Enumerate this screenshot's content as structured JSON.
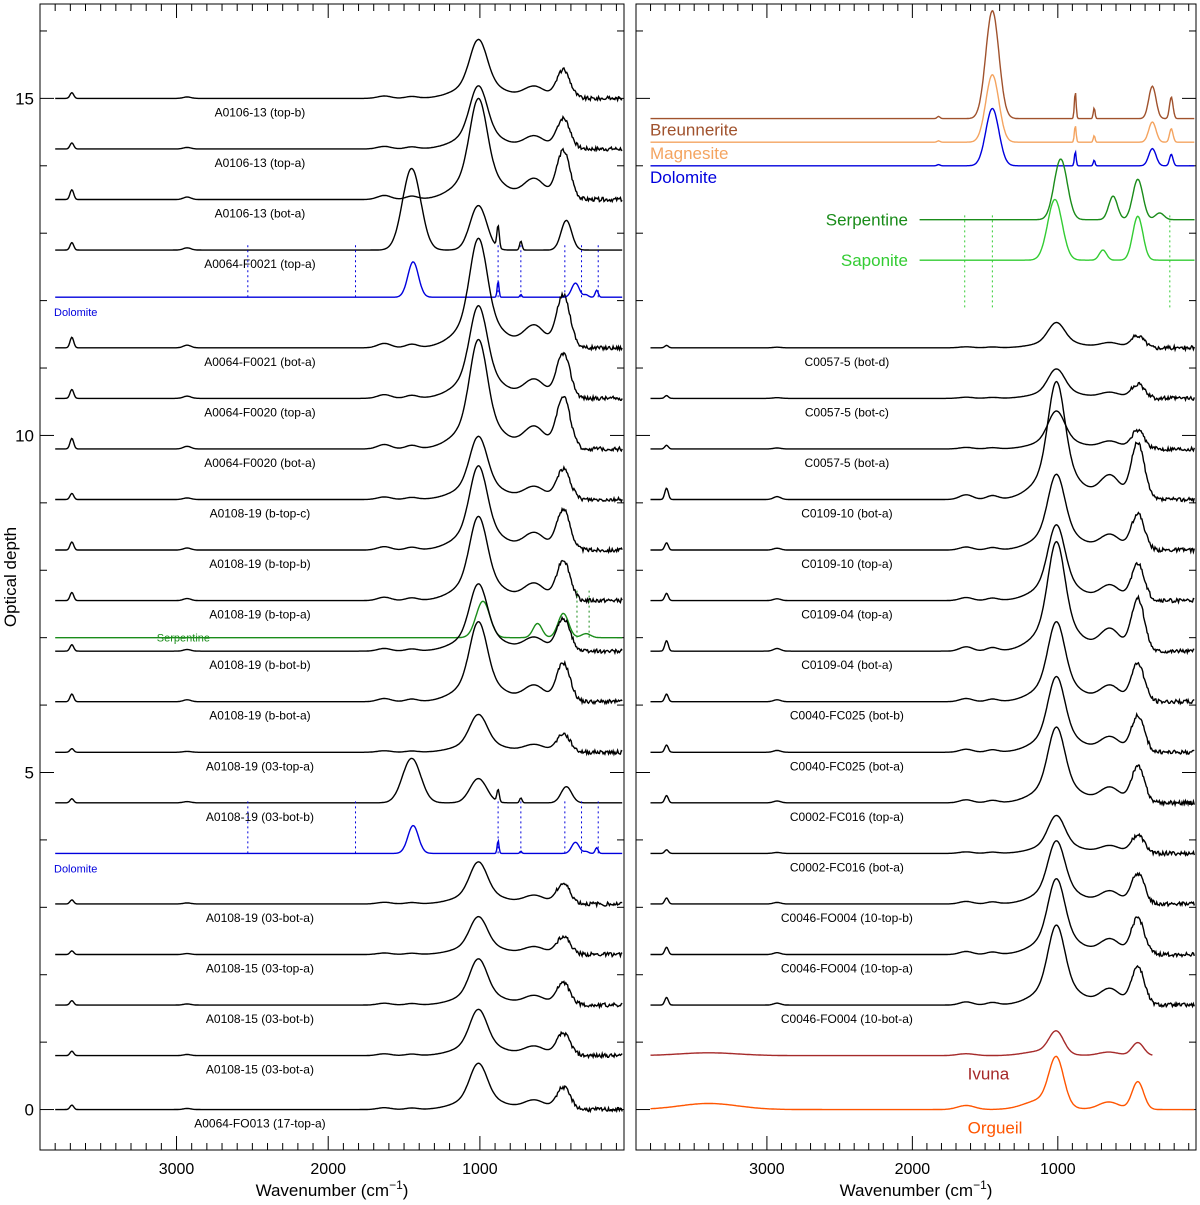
{
  "chart_data": [
    {
      "type": "line",
      "panel": "left",
      "xlabel": "Wavenumber (cm",
      "xlabel_sup": "−1",
      "xlabel_tail": ")",
      "ylabel": "Optical depth",
      "xlim": [
        3900,
        50
      ],
      "ylim": [
        -0.6,
        16.4
      ],
      "x_ticks": [
        "3000",
        "2000",
        "1000"
      ],
      "x_tick_values": [
        3000,
        2000,
        1000
      ],
      "y_ticks": [
        "0",
        "5",
        "10",
        "15"
      ],
      "y_tick_values": [
        0,
        5,
        10,
        15
      ],
      "series": [
        {
          "name": "A0106-13 (top-b)",
          "color": "#000000",
          "offset": 15.0,
          "profile": "black",
          "scale": 0.7
        },
        {
          "name": "A0106-13 (top-a)",
          "color": "#000000",
          "offset": 14.25,
          "profile": "black",
          "scale": 0.75
        },
        {
          "name": "A0106-13 (bot-a)",
          "color": "#000000",
          "offset": 13.5,
          "profile": "black",
          "scale": 1.2
        },
        {
          "name": "A0064-F0021 (top-a)",
          "color": "#000000",
          "offset": 12.75,
          "profile": "dolocarb",
          "scale": 1.1
        },
        {
          "name": "Dolomite",
          "color": "#0000dd",
          "offset": 12.05,
          "profile": "dolomite",
          "scale": 0.7,
          "small_label": true
        },
        {
          "name": "A0064-F0021 (bot-a)",
          "color": "#000000",
          "offset": 11.3,
          "profile": "black",
          "scale": 1.3
        },
        {
          "name": "A0064-F0020 (top-a)",
          "color": "#000000",
          "offset": 10.55,
          "profile": "black",
          "scale": 1.1
        },
        {
          "name": "A0064-F0020 (bot-a)",
          "color": "#000000",
          "offset": 9.8,
          "profile": "black",
          "scale": 1.3
        },
        {
          "name": "A0108-19 (b-top-c)",
          "color": "#000000",
          "offset": 9.05,
          "profile": "black",
          "scale": 0.75
        },
        {
          "name": "A0108-19 (b-top-b)",
          "color": "#000000",
          "offset": 8.3,
          "profile": "black",
          "scale": 1.0
        },
        {
          "name": "A0108-19 (b-top-a)",
          "color": "#000000",
          "offset": 7.55,
          "profile": "black",
          "scale": 1.0
        },
        {
          "name": "Serpentine",
          "color": "#1a8c1a",
          "offset": 7.0,
          "profile": "serpentine",
          "scale": 0.6,
          "small_label": true
        },
        {
          "name": "A0108-19 (b-bot-b)",
          "color": "#000000",
          "offset": 6.8,
          "profile": "black",
          "scale": 0.8
        },
        {
          "name": "A0108-19 (b-bot-a)",
          "color": "#000000",
          "offset": 6.05,
          "profile": "black",
          "scale": 0.95
        },
        {
          "name": "A0108-19 (03-top-a)",
          "color": "#000000",
          "offset": 5.3,
          "profile": "black",
          "scale": 0.45
        },
        {
          "name": "A0108-19 (03-bot-b)",
          "color": "#000000",
          "offset": 4.55,
          "profile": "dolocarb",
          "scale": 0.6
        },
        {
          "name": "Dolomite",
          "color": "#0000dd",
          "offset": 3.8,
          "profile": "dolomite",
          "scale": 0.55,
          "small_label": true
        },
        {
          "name": "A0108-19 (03-bot-a)",
          "color": "#000000",
          "offset": 3.05,
          "profile": "black",
          "scale": 0.5
        },
        {
          "name": "A0108-15 (03-top-a)",
          "color": "#000000",
          "offset": 2.3,
          "profile": "black",
          "scale": 0.45
        },
        {
          "name": "A0108-15 (03-bot-b)",
          "color": "#000000",
          "offset": 1.55,
          "profile": "black",
          "scale": 0.55
        },
        {
          "name": "A0108-15 (03-bot-a)",
          "color": "#000000",
          "offset": 0.8,
          "profile": "black",
          "scale": 0.55
        },
        {
          "name": "A0064-FO013 (17-top-a)",
          "color": "#000000",
          "offset": 0.0,
          "profile": "black",
          "scale": 0.55
        }
      ],
      "reference_lines": [
        {
          "color": "#0000dd",
          "x": [
            2530,
            1820,
            880,
            730,
            440,
            330,
            220
          ],
          "y_from": 12.05,
          "y_to": 12.85
        },
        {
          "color": "#0000dd",
          "x": [
            2530,
            1820,
            880,
            730,
            440,
            330,
            220
          ],
          "y_from": 3.8,
          "y_to": 4.6
        },
        {
          "color": "#1a8c1a",
          "x": [
            360,
            280
          ],
          "y_from": 7.0,
          "y_to": 7.7
        }
      ]
    },
    {
      "type": "line",
      "panel": "right",
      "xlabel": "Wavenumber (cm",
      "xlabel_sup": "−1",
      "xlabel_tail": ")",
      "xlim": [
        3900,
        50
      ],
      "ylim": [
        -0.6,
        16.4
      ],
      "x_ticks": [
        "3000",
        "2000",
        "1000"
      ],
      "x_tick_values": [
        3000,
        2000,
        1000
      ],
      "series": [
        {
          "name": "Breunnerite",
          "color": "#a0522d",
          "offset": 14.7,
          "profile": "carb",
          "scale": 1.6,
          "big_label": true
        },
        {
          "name": "Magnesite",
          "color": "#f4a460",
          "offset": 14.35,
          "profile": "carb",
          "scale": 1.0,
          "big_label": true
        },
        {
          "name": "Dolomite",
          "color": "#0000dd",
          "offset": 14.0,
          "profile": "carb",
          "scale": 0.85,
          "big_label": true
        },
        {
          "name": "Serpentine",
          "color": "#1a8c1a",
          "offset": 13.2,
          "profile": "serpentine",
          "scale": 1.0,
          "big_label": true,
          "x_start": 1950
        },
        {
          "name": "Saponite",
          "color": "#33cc33",
          "offset": 12.6,
          "profile": "saponite",
          "scale": 1.0,
          "big_label": true,
          "x_start": 1950
        },
        {
          "name": "C0057-5 (bot-d)",
          "color": "#000000",
          "offset": 11.3,
          "profile": "black",
          "scale": 0.3
        },
        {
          "name": "C0057-5 (bot-c)",
          "color": "#000000",
          "offset": 10.55,
          "profile": "black",
          "scale": 0.35
        },
        {
          "name": "C0057-5 (bot-a)",
          "color": "#000000",
          "offset": 9.8,
          "profile": "black",
          "scale": 0.45
        },
        {
          "name": "C0109-10 (bot-a)",
          "color": "#000000",
          "offset": 9.05,
          "profile": "black",
          "scale": 1.4
        },
        {
          "name": "C0109-10 (top-a)",
          "color": "#000000",
          "offset": 8.3,
          "profile": "black",
          "scale": 0.9
        },
        {
          "name": "C0109-04 (top-a)",
          "color": "#000000",
          "offset": 7.55,
          "profile": "black",
          "scale": 0.9
        },
        {
          "name": "C0109-04 (bot-a)",
          "color": "#000000",
          "offset": 6.8,
          "profile": "black",
          "scale": 1.3
        },
        {
          "name": "C0040-FC025 (bot-b)",
          "color": "#000000",
          "offset": 6.05,
          "profile": "black",
          "scale": 0.95
        },
        {
          "name": "C0040-FC025 (bot-a)",
          "color": "#000000",
          "offset": 5.3,
          "profile": "black",
          "scale": 0.9
        },
        {
          "name": "C0002-FC016 (top-a)",
          "color": "#000000",
          "offset": 4.55,
          "profile": "black",
          "scale": 0.9
        },
        {
          "name": "C0002-FC016 (bot-a)",
          "color": "#000000",
          "offset": 3.8,
          "profile": "black",
          "scale": 0.45
        },
        {
          "name": "C0046-FO004 (10-top-b)",
          "color": "#000000",
          "offset": 3.05,
          "profile": "black",
          "scale": 0.75
        },
        {
          "name": "C0046-FO004 (10-top-a)",
          "color": "#000000",
          "offset": 2.3,
          "profile": "black",
          "scale": 0.9
        },
        {
          "name": "C0046-FO004 (10-bot-a)",
          "color": "#000000",
          "offset": 1.55,
          "profile": "black",
          "scale": 0.95
        },
        {
          "name": "Ivuna",
          "color": "#a52a2a",
          "offset": 0.8,
          "profile": "ivuna",
          "scale": 0.35,
          "big_label": true,
          "x_end": 350
        },
        {
          "name": "Orgueil",
          "color": "#ff5500",
          "offset": 0.0,
          "profile": "ivuna",
          "scale": 0.75,
          "big_label": true
        }
      ],
      "reference_lines": [
        {
          "color": "#33cc33",
          "x": [
            1640,
            1450,
            230
          ],
          "y_from": 11.9,
          "y_to": 13.3
        }
      ]
    }
  ]
}
